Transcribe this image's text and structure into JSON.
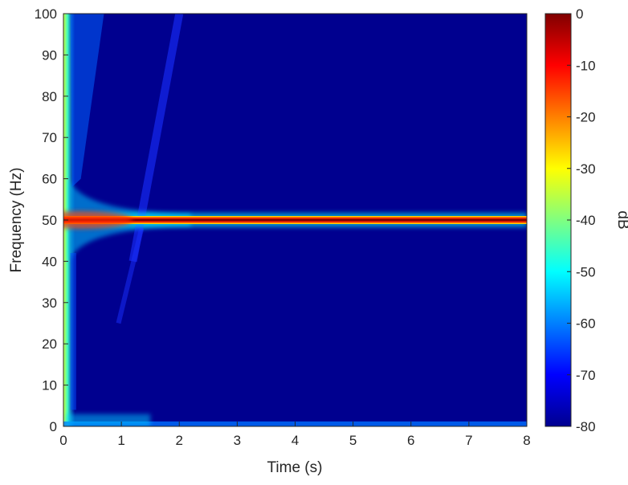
{
  "chart_data": {
    "type": "heatmap",
    "title": "",
    "xlabel": "Time (s)",
    "ylabel": "Frequency (Hz)",
    "xlim": [
      0,
      8
    ],
    "ylim": [
      0,
      100
    ],
    "x_ticks": [
      0,
      1,
      2,
      3,
      4,
      5,
      6,
      7,
      8
    ],
    "y_ticks": [
      0,
      10,
      20,
      30,
      40,
      50,
      60,
      70,
      80,
      90,
      100
    ],
    "colormap": "jet",
    "background_color": "#00008f",
    "colorbar": {
      "label": "dB",
      "range": [
        -80,
        0
      ],
      "ticks": [
        0,
        -10,
        -20,
        -30,
        -40,
        -50,
        -60,
        -70,
        -80
      ]
    },
    "features": [
      {
        "name": "dominant tone",
        "frequency_hz": 50,
        "time_range_s": [
          0,
          8
        ],
        "level_db": 0
      },
      {
        "name": "startup transient broadband",
        "time_range_s": [
          0,
          0.2
        ],
        "frequency_range_hz": [
          0,
          100
        ],
        "level_db": -35
      },
      {
        "name": "spectral leakage near 50 Hz",
        "time_range_s": [
          0.1,
          2.2
        ],
        "frequency_range_hz": [
          40,
          60
        ],
        "level_db": -50
      },
      {
        "name": "DC component",
        "frequency_hz": 0,
        "time_range_s": [
          0,
          8
        ],
        "level_db": -55
      },
      {
        "name": "diagonal chirp band",
        "from": {
          "t": 1.2,
          "f": 40
        },
        "to": {
          "t": 2.0,
          "f": 100
        },
        "level_db": -72
      }
    ],
    "grid": false,
    "legend": "none"
  }
}
